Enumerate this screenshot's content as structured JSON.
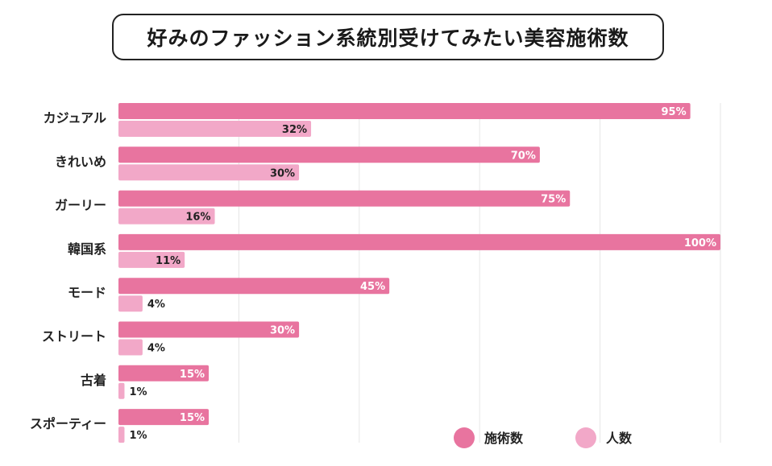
{
  "chart_data": {
    "type": "bar",
    "orientation": "horizontal",
    "title": "好みのファッション系統別受けてみたい美容施術数",
    "categories": [
      "カジュアル",
      "きれいめ",
      "ガーリー",
      "韓国系",
      "モード",
      "ストリート",
      "古着",
      "スポーティー"
    ],
    "series": [
      {
        "name": "施術数",
        "values": [
          95,
          70,
          75,
          100,
          45,
          30,
          15,
          15
        ],
        "color": "#e8749f"
      },
      {
        "name": "人数",
        "values": [
          32,
          30,
          16,
          11,
          4,
          4,
          1,
          1
        ],
        "color": "#f2a8c8"
      }
    ],
    "value_suffix": "%",
    "xlim": [
      0,
      100
    ],
    "grid": true,
    "legend": "bottom-right"
  }
}
